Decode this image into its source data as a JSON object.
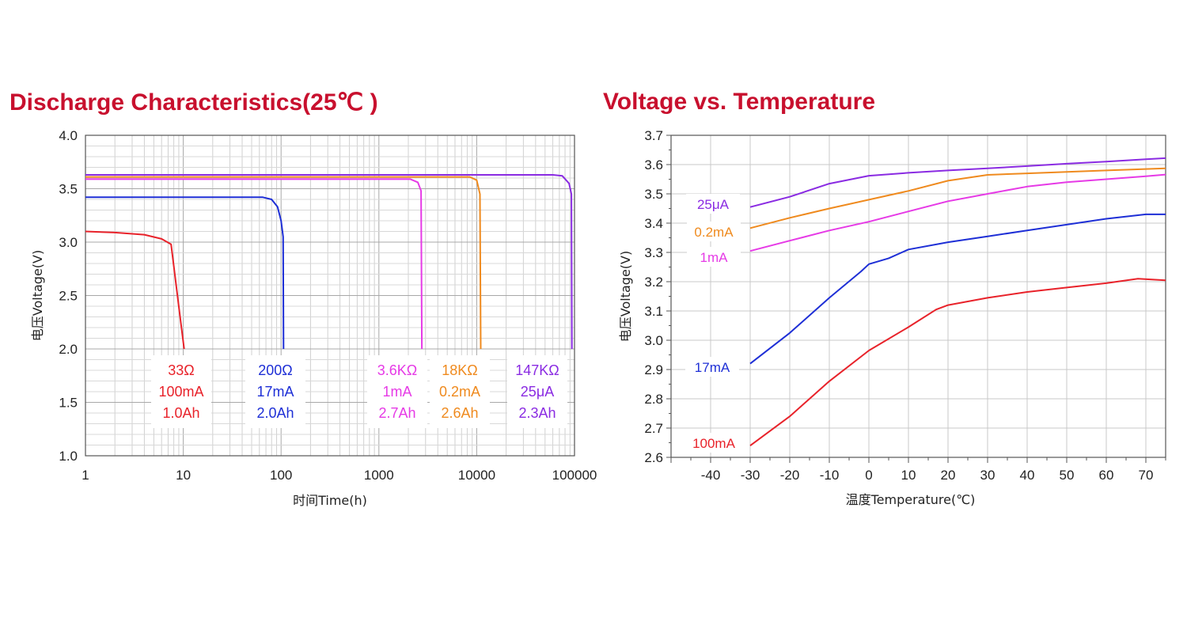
{
  "chart_data": [
    {
      "type": "line",
      "title": "Discharge  Characteristics(25℃ )",
      "xlabel": "时间Time(h)",
      "ylabel": "电压Voltage(V)",
      "xscale": "log",
      "xlim": [
        1,
        100000
      ],
      "ylim": [
        1.0,
        4.0
      ],
      "x_tick_labels": [
        "1",
        "10",
        "100",
        "1000",
        "10000",
        "100000"
      ],
      "y_tick_labels": [
        "1.0",
        "1.5",
        "2.0",
        "2.5",
        "3.0",
        "3.5",
        "4.0"
      ],
      "grid": true,
      "series": [
        {
          "color": "#e8222a",
          "labels": [
            "33Ω",
            "100mA",
            "1.0Ah"
          ],
          "points": [
            [
              1,
              3.1
            ],
            [
              2,
              3.09
            ],
            [
              4,
              3.07
            ],
            [
              6,
              3.03
            ],
            [
              7.5,
              2.98
            ],
            [
              9,
              2.4
            ],
            [
              10.2,
              2.0
            ]
          ]
        },
        {
          "color": "#1e2fd6",
          "labels": [
            "200Ω",
            "17mA",
            "2.0Ah"
          ],
          "points": [
            [
              1,
              3.42
            ],
            [
              65,
              3.42
            ],
            [
              80,
              3.4
            ],
            [
              92,
              3.33
            ],
            [
              100,
              3.2
            ],
            [
              105,
              3.05
            ],
            [
              106,
              2.0
            ]
          ]
        },
        {
          "color": "#e63ae6",
          "labels": [
            "3.6KΩ",
            "1mA",
            "2.7Ah"
          ],
          "points": [
            [
              1,
              3.59
            ],
            [
              2100,
              3.59
            ],
            [
              2500,
              3.56
            ],
            [
              2700,
              3.48
            ],
            [
              2750,
              2.0
            ]
          ]
        },
        {
          "color": "#ef8a1e",
          "labels": [
            "18KΩ",
            "0.2mA",
            "2.6Ah"
          ],
          "points": [
            [
              1,
              3.61
            ],
            [
              8500,
              3.61
            ],
            [
              10000,
              3.58
            ],
            [
              10800,
              3.45
            ],
            [
              11000,
              2.0
            ]
          ]
        },
        {
          "color": "#8a2be2",
          "labels": [
            "147KΩ",
            "25μA",
            "2.3Ah"
          ],
          "points": [
            [
              1,
              3.63
            ],
            [
              60000,
              3.63
            ],
            [
              75000,
              3.62
            ],
            [
              88000,
              3.55
            ],
            [
              93000,
              3.45
            ],
            [
              94000,
              2.0
            ]
          ]
        }
      ]
    },
    {
      "type": "line",
      "title": "Voltage  vs.  Temperature",
      "xlabel": "温度Temperature(℃)",
      "ylabel": "电压Voltage(V)",
      "xlim": [
        -50,
        75
      ],
      "ylim": [
        2.6,
        3.7
      ],
      "x_tick_labels": [
        "-40",
        "-30",
        "-20",
        "-10",
        "0",
        "10",
        "20",
        "30",
        "40",
        "50",
        "60",
        "70"
      ],
      "y_tick_labels": [
        "2.6",
        "2.7",
        "2.8",
        "2.9",
        "3.0",
        "3.1",
        "3.2",
        "3.3",
        "3.4",
        "3.5",
        "3.6",
        "3.7"
      ],
      "grid": true,
      "series": [
        {
          "name": "25μA",
          "color": "#8a2be2",
          "points": [
            [
              -30,
              3.455
            ],
            [
              -20,
              3.49
            ],
            [
              -10,
              3.535
            ],
            [
              0,
              3.562
            ],
            [
              10,
              3.572
            ],
            [
              20,
              3.58
            ],
            [
              30,
              3.587
            ],
            [
              40,
              3.595
            ],
            [
              50,
              3.603
            ],
            [
              60,
              3.61
            ],
            [
              70,
              3.618
            ],
            [
              75,
              3.622
            ]
          ]
        },
        {
          "name": "0.2mA",
          "color": "#ef8a1e",
          "points": [
            [
              -30,
              3.383
            ],
            [
              -20,
              3.418
            ],
            [
              -10,
              3.45
            ],
            [
              0,
              3.48
            ],
            [
              10,
              3.51
            ],
            [
              20,
              3.545
            ],
            [
              30,
              3.565
            ],
            [
              40,
              3.57
            ],
            [
              50,
              3.575
            ],
            [
              60,
              3.58
            ],
            [
              70,
              3.585
            ],
            [
              75,
              3.587
            ]
          ]
        },
        {
          "name": "1mA",
          "color": "#e63ae6",
          "points": [
            [
              -30,
              3.305
            ],
            [
              -20,
              3.34
            ],
            [
              -10,
              3.375
            ],
            [
              0,
              3.405
            ],
            [
              10,
              3.44
            ],
            [
              20,
              3.475
            ],
            [
              30,
              3.5
            ],
            [
              40,
              3.525
            ],
            [
              50,
              3.54
            ],
            [
              60,
              3.55
            ],
            [
              70,
              3.56
            ],
            [
              75,
              3.566
            ]
          ]
        },
        {
          "name": "17mA",
          "color": "#1e2fd6",
          "points": [
            [
              -30,
              2.92
            ],
            [
              -20,
              3.025
            ],
            [
              -10,
              3.145
            ],
            [
              -2,
              3.235
            ],
            [
              0,
              3.26
            ],
            [
              5,
              3.28
            ],
            [
              10,
              3.31
            ],
            [
              20,
              3.335
            ],
            [
              30,
              3.355
            ],
            [
              40,
              3.375
            ],
            [
              50,
              3.395
            ],
            [
              60,
              3.415
            ],
            [
              70,
              3.43
            ],
            [
              75,
              3.43
            ]
          ]
        },
        {
          "name": "100mA",
          "color": "#e8222a",
          "points": [
            [
              -30,
              2.64
            ],
            [
              -20,
              2.74
            ],
            [
              -10,
              2.86
            ],
            [
              0,
              2.965
            ],
            [
              10,
              3.045
            ],
            [
              17,
              3.105
            ],
            [
              20,
              3.12
            ],
            [
              30,
              3.145
            ],
            [
              40,
              3.165
            ],
            [
              50,
              3.18
            ],
            [
              60,
              3.195
            ],
            [
              68,
              3.21
            ],
            [
              75,
              3.205
            ]
          ]
        }
      ]
    }
  ]
}
